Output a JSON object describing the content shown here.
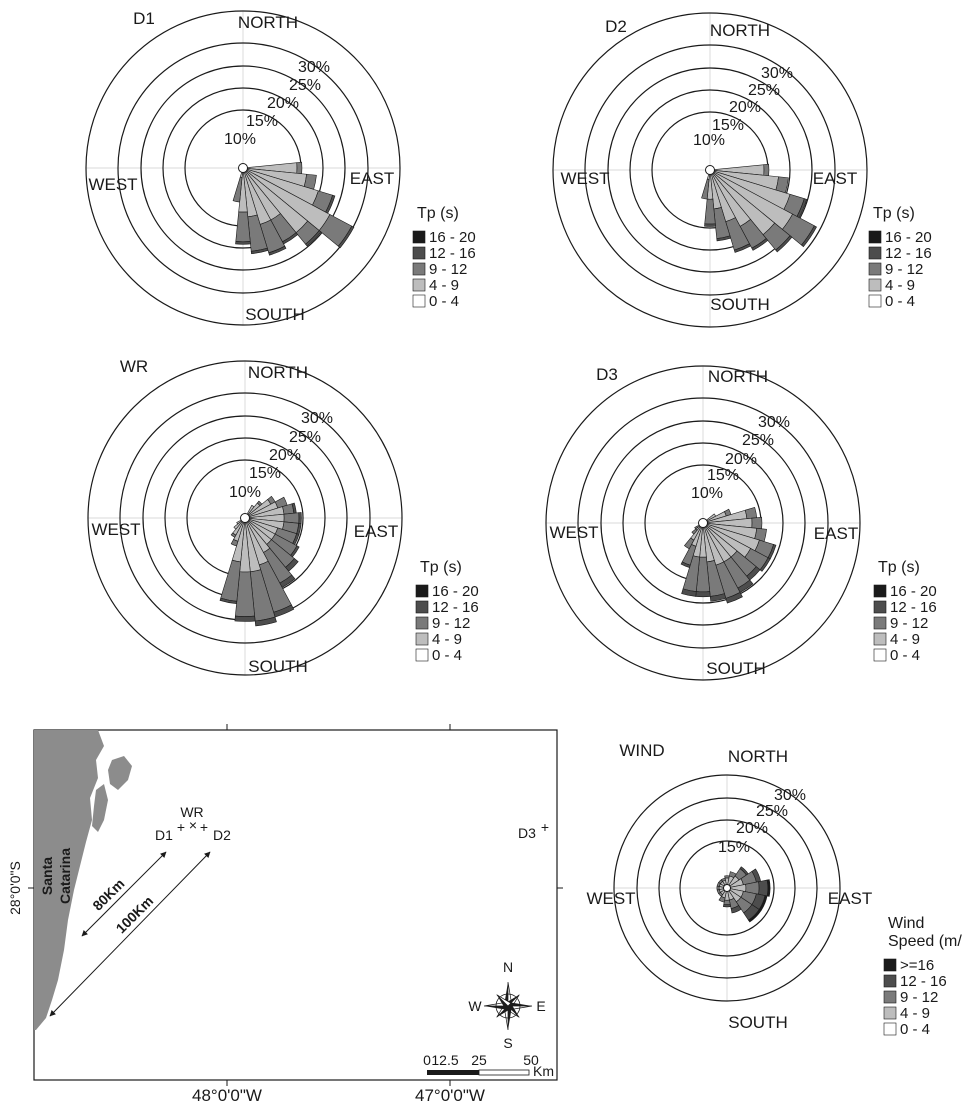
{
  "chart_data": [
    {
      "type": "polar-bar",
      "title": "D1",
      "directions": [
        "NORTH",
        "EAST",
        "SOUTH",
        "WEST"
      ],
      "ring_labels": [
        "10%",
        "15%",
        "20%",
        "25%",
        "30%"
      ],
      "ring_values": [
        10,
        15,
        20,
        25,
        30
      ],
      "legend_title": "Tp (s)",
      "classes": [
        "16 - 20",
        "12 - 16",
        "9 - 12",
        "4 - 9",
        "0 - 4"
      ],
      "class_colors": [
        "#1a1a1a",
        "#4d4d4d",
        "#7a7a7a",
        "#bdbdbd",
        "#ffffff"
      ],
      "sector_width_deg": 11.25,
      "sectors": [
        {
          "dir": 90,
          "values": [
            0,
            0,
            1,
            10
          ]
        },
        {
          "dir": 101.25,
          "values": [
            0,
            0,
            2,
            12
          ]
        },
        {
          "dir": 112.5,
          "values": [
            0,
            0.5,
            3,
            15
          ]
        },
        {
          "dir": 123.75,
          "values": [
            0,
            0.5,
            5,
            19
          ]
        },
        {
          "dir": 135,
          "values": [
            0,
            0.5,
            3,
            16
          ]
        },
        {
          "dir": 146.25,
          "values": [
            0,
            0.5,
            5,
            11
          ]
        },
        {
          "dir": 157.5,
          "values": [
            0,
            0.5,
            6,
            11
          ]
        },
        {
          "dir": 168.75,
          "values": [
            0,
            0.5,
            7,
            9
          ]
        },
        {
          "dir": 180,
          "values": [
            0,
            0.5,
            6,
            8
          ]
        },
        {
          "dir": 191.25,
          "values": [
            0,
            0,
            5,
            1
          ]
        }
      ]
    },
    {
      "type": "polar-bar",
      "title": "D2",
      "directions": [
        "NORTH",
        "EAST",
        "SOUTH",
        "WEST"
      ],
      "ring_labels": [
        "10%",
        "15%",
        "20%",
        "25%",
        "30%"
      ],
      "ring_values": [
        10,
        15,
        20,
        25,
        30
      ],
      "legend_title": "Tp (s)",
      "classes": [
        "16 - 20",
        "12 - 16",
        "9 - 12",
        "4 - 9",
        "0 - 4"
      ],
      "class_colors": [
        "#1a1a1a",
        "#4d4d4d",
        "#7a7a7a",
        "#bdbdbd",
        "#ffffff"
      ],
      "sector_width_deg": 11.25,
      "sectors": [
        {
          "dir": 90,
          "values": [
            0,
            0,
            1,
            10
          ]
        },
        {
          "dir": 101.25,
          "values": [
            0,
            0,
            2,
            13
          ]
        },
        {
          "dir": 112.5,
          "values": [
            0,
            0.5,
            3,
            16
          ]
        },
        {
          "dir": 123.75,
          "values": [
            0,
            0.5,
            5,
            18
          ]
        },
        {
          "dir": 135,
          "values": [
            0,
            0.5,
            4,
            16
          ]
        },
        {
          "dir": 146.25,
          "values": [
            0,
            0.5,
            5,
            12
          ]
        },
        {
          "dir": 157.5,
          "values": [
            0,
            0.5,
            6,
            10
          ]
        },
        {
          "dir": 168.75,
          "values": [
            0,
            0.5,
            6,
            7
          ]
        },
        {
          "dir": 180,
          "values": [
            0,
            0.5,
            5,
            5
          ]
        },
        {
          "dir": 191.25,
          "values": [
            0,
            0,
            4,
            1
          ]
        }
      ]
    },
    {
      "type": "polar-bar",
      "title": "WR",
      "directions": [
        "NORTH",
        "EAST",
        "SOUTH",
        "WEST"
      ],
      "ring_labels": [
        "10%",
        "15%",
        "20%",
        "25%",
        "30%"
      ],
      "ring_values": [
        10,
        15,
        20,
        25,
        30
      ],
      "legend_title": "Tp (s)",
      "classes": [
        "16 - 20",
        "12 - 16",
        "9 - 12",
        "4 - 9",
        "0 - 4"
      ],
      "class_colors": [
        "#1a1a1a",
        "#4d4d4d",
        "#7a7a7a",
        "#bdbdbd",
        "#ffffff"
      ],
      "sector_width_deg": 11.25,
      "sectors": [
        {
          "dir": 33.75,
          "values": [
            0,
            0,
            0,
            2
          ]
        },
        {
          "dir": 45,
          "values": [
            0,
            0,
            0.5,
            3
          ]
        },
        {
          "dir": 56.25,
          "values": [
            0,
            0,
            1,
            5
          ]
        },
        {
          "dir": 67.5,
          "values": [
            0,
            0,
            2,
            6
          ]
        },
        {
          "dir": 78.75,
          "values": [
            0,
            0.5,
            2,
            7
          ]
        },
        {
          "dir": 90,
          "values": [
            0,
            0.5,
            3,
            7
          ]
        },
        {
          "dir": 101.25,
          "values": [
            0,
            0.5,
            3,
            7
          ]
        },
        {
          "dir": 112.5,
          "values": [
            0,
            0.5,
            4,
            6
          ]
        },
        {
          "dir": 123.75,
          "values": [
            0,
            0.5,
            5,
            6
          ]
        },
        {
          "dir": 135,
          "values": [
            0,
            1,
            6,
            6
          ]
        },
        {
          "dir": 146.25,
          "values": [
            0,
            1,
            7,
            7
          ]
        },
        {
          "dir": 157.5,
          "values": [
            0,
            1,
            10,
            9
          ]
        },
        {
          "dir": 168.75,
          "values": [
            0,
            1,
            10,
            10
          ]
        },
        {
          "dir": 180,
          "values": [
            0,
            1,
            9,
            10
          ]
        },
        {
          "dir": 191.25,
          "values": [
            0,
            0.5,
            8,
            8
          ]
        },
        {
          "dir": 202.5,
          "values": [
            0,
            0,
            1,
            4
          ]
        },
        {
          "dir": 213.75,
          "values": [
            0,
            0,
            0.5,
            3
          ]
        },
        {
          "dir": 225,
          "values": [
            0,
            0,
            0,
            2
          ]
        },
        {
          "dir": 236.25,
          "values": [
            0,
            0,
            0,
            1
          ]
        }
      ]
    },
    {
      "type": "polar-bar",
      "title": "D3",
      "directions": [
        "NORTH",
        "EAST",
        "SOUTH",
        "WEST"
      ],
      "ring_labels": [
        "10%",
        "15%",
        "20%",
        "25%",
        "30%"
      ],
      "ring_values": [
        10,
        15,
        20,
        25,
        30
      ],
      "legend_title": "Tp (s)",
      "classes": [
        "16 - 20",
        "12 - 16",
        "9 - 12",
        "4 - 9",
        "0 - 4"
      ],
      "class_colors": [
        "#1a1a1a",
        "#4d4d4d",
        "#7a7a7a",
        "#bdbdbd",
        "#ffffff"
      ],
      "sector_width_deg": 11.25,
      "sectors": [
        {
          "dir": 56.25,
          "values": [
            0,
            0,
            0,
            2
          ]
        },
        {
          "dir": 67.5,
          "values": [
            0,
            0,
            1,
            4
          ]
        },
        {
          "dir": 78.75,
          "values": [
            0,
            0,
            2,
            8
          ]
        },
        {
          "dir": 90,
          "values": [
            0,
            0,
            2,
            9
          ]
        },
        {
          "dir": 101.25,
          "values": [
            0,
            0,
            2,
            10
          ]
        },
        {
          "dir": 112.5,
          "values": [
            0,
            0.5,
            3,
            11
          ]
        },
        {
          "dir": 123.75,
          "values": [
            0,
            0.5,
            4,
            10
          ]
        },
        {
          "dir": 135,
          "values": [
            0,
            1,
            5,
            8
          ]
        },
        {
          "dir": 146.25,
          "values": [
            0,
            1,
            6,
            8
          ]
        },
        {
          "dir": 157.5,
          "values": [
            0,
            1,
            7,
            8
          ]
        },
        {
          "dir": 168.75,
          "values": [
            0,
            1,
            7,
            7
          ]
        },
        {
          "dir": 180,
          "values": [
            0,
            1,
            7,
            6
          ]
        },
        {
          "dir": 191.25,
          "values": [
            0,
            1,
            7,
            6
          ]
        },
        {
          "dir": 202.5,
          "values": [
            0,
            0.5,
            4,
            4
          ]
        },
        {
          "dir": 213.75,
          "values": [
            0,
            0,
            2,
            3
          ]
        },
        {
          "dir": 225,
          "values": [
            0,
            0,
            1,
            1
          ]
        },
        {
          "dir": 236.25,
          "values": [
            0,
            0,
            0.5,
            0.5
          ]
        }
      ]
    },
    {
      "type": "polar-bar",
      "title": "WIND",
      "directions": [
        "NORTH",
        "EAST",
        "SOUTH",
        "WEST"
      ],
      "ring_labels": [
        "15%",
        "20%",
        "25%",
        "30%"
      ],
      "ring_values": [
        15,
        20,
        25,
        30
      ],
      "legend_title": "Wind Speed (m/s)",
      "legend_title_lines": [
        "Wind",
        "Speed (m/s)"
      ],
      "classes": [
        ">=16",
        "12 - 16",
        "9 - 12",
        "4 - 9",
        "0 - 4"
      ],
      "class_colors": [
        "#1a1a1a",
        "#4d4d4d",
        "#7a7a7a",
        "#bdbdbd",
        "#ffffff"
      ],
      "sector_width_deg": 22.5,
      "sectors": [
        {
          "dir": 0,
          "values": [
            0,
            0,
            0.5,
            1.5
          ]
        },
        {
          "dir": 22.5,
          "values": [
            0,
            0,
            1,
            2
          ]
        },
        {
          "dir": 45,
          "values": [
            0,
            0.5,
            2,
            2.5
          ]
        },
        {
          "dir": 67.5,
          "values": [
            0,
            1,
            3,
            3
          ]
        },
        {
          "dir": 90,
          "values": [
            0.5,
            2,
            3,
            3.5
          ]
        },
        {
          "dir": 112.5,
          "values": [
            0.5,
            2,
            3,
            3
          ]
        },
        {
          "dir": 135,
          "values": [
            0.5,
            2,
            3,
            3
          ]
        },
        {
          "dir": 157.5,
          "values": [
            0,
            1,
            2,
            2
          ]
        },
        {
          "dir": 180,
          "values": [
            0,
            0.5,
            1,
            2
          ]
        },
        {
          "dir": 202.5,
          "values": [
            0,
            0,
            1,
            1.5
          ]
        },
        {
          "dir": 225,
          "values": [
            0,
            0,
            0.5,
            1
          ]
        },
        {
          "dir": 247.5,
          "values": [
            0,
            0,
            0.5,
            1
          ]
        },
        {
          "dir": 270,
          "values": [
            0,
            0,
            0.5,
            1
          ]
        },
        {
          "dir": 292.5,
          "values": [
            0,
            0,
            0.5,
            1
          ]
        },
        {
          "dir": 315,
          "values": [
            0,
            0,
            0.5,
            1
          ]
        },
        {
          "dir": 337.5,
          "values": [
            0,
            0,
            0.5,
            1
          ]
        }
      ]
    }
  ],
  "map": {
    "region_label": [
      "Santa",
      "Catarina"
    ],
    "points": [
      {
        "name": "WR",
        "symbol": "×"
      },
      {
        "name": "D1",
        "symbol": "+"
      },
      {
        "name": "D2",
        "symbol": "+"
      },
      {
        "name": "D3",
        "symbol": "+"
      }
    ],
    "distances": [
      "80Km",
      "100Km"
    ],
    "lat_label": "28°0'0\"S",
    "lon_labels": [
      "48°0'0\"W",
      "47°0'0\"W"
    ],
    "compass": [
      "N",
      "E",
      "S",
      "W"
    ],
    "scale_labels": [
      "0",
      "12.5",
      "25",
      "50"
    ],
    "scale_unit": "Km",
    "land_color": "#8c8c8c"
  }
}
